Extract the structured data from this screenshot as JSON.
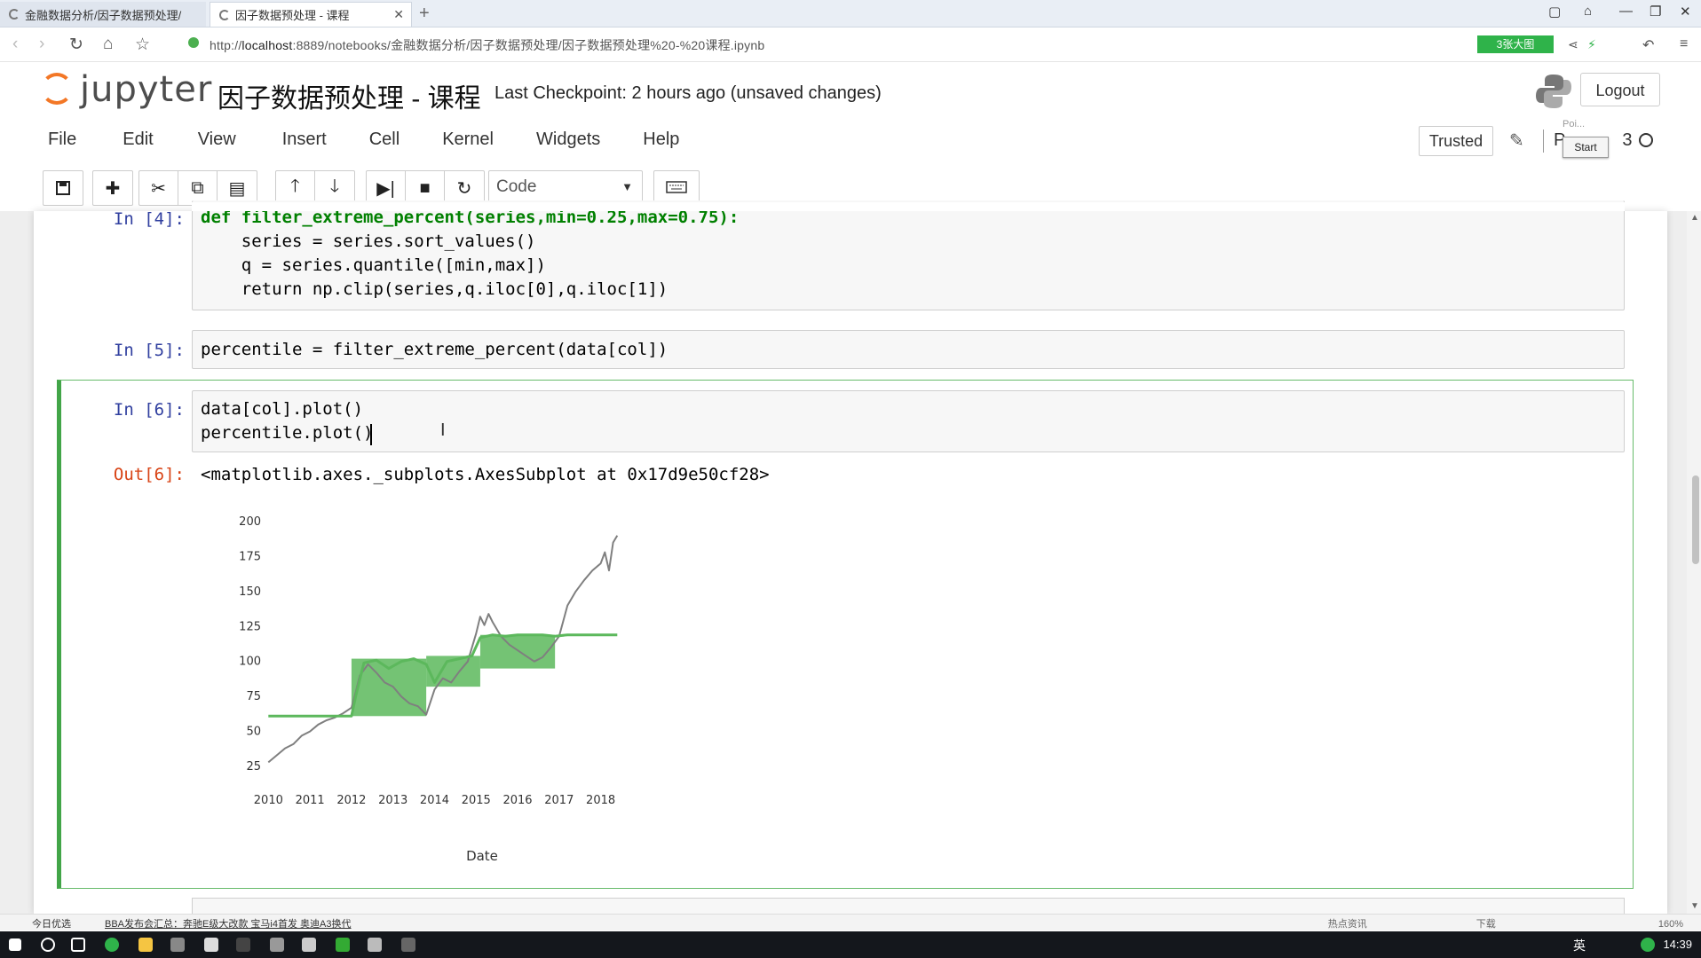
{
  "browser": {
    "tabs": [
      {
        "label": "金融数据分析/因子数据预处理/",
        "active": false
      },
      {
        "label": "因子数据预处理 - 课程",
        "active": true
      }
    ],
    "url_prefix": "http://",
    "url_host": "localhost",
    "url_rest": ":8889/notebooks/金融数据分析/因子数据预处理/因子数据预处理%20-%20课程.ipynb",
    "extension_label": "3张大图"
  },
  "jupyter": {
    "logo_text": "jupyter",
    "notebook_title": "因子数据预处理 - 课程",
    "checkpoint": "Last Checkpoint: 2 hours ago (unsaved changes)",
    "logout_label": "Logout",
    "trusted_label": "Trusted",
    "kernel_label": "P",
    "kernel_suffix": "3",
    "tooltip_start": "Start",
    "tooltip_pos": "Poi..."
  },
  "menu": [
    "File",
    "Edit",
    "View",
    "Insert",
    "Cell",
    "Kernel",
    "Widgets",
    "Help"
  ],
  "toolbar": {
    "cell_type": "Code"
  },
  "cells": [
    {
      "prompt": "In  [4]:",
      "lines": [
        "def filter_extreme_percent(series,min=0.25,max=0.75):",
        "    series = series.sort_values()",
        "    q = series.quantile([min,max])",
        "    return np.clip(series,q.iloc[0],q.iloc[1])"
      ]
    },
    {
      "prompt": "In  [5]:",
      "lines": [
        "percentile = filter_extreme_percent(data[col])"
      ]
    },
    {
      "prompt": "In  [6]:",
      "lines": [
        "data[col].plot()",
        "percentile.plot()"
      ],
      "out_prompt": "Out[6]:",
      "out_text": "<matplotlib.axes._subplots.AxesSubplot at 0x17d9e50cf28>"
    }
  ],
  "chart_data": {
    "type": "line",
    "xlabel": "Date",
    "ylabel": "",
    "x_ticks": [
      "2010",
      "2011",
      "2012",
      "2013",
      "2014",
      "2015",
      "2016",
      "2017",
      "2018"
    ],
    "y_ticks": [
      25,
      50,
      75,
      100,
      125,
      150,
      175,
      200
    ],
    "xlim": [
      2009.95,
      2018.5
    ],
    "ylim": [
      20,
      205
    ],
    "series": [
      {
        "color": "#7f7f7f",
        "x": [
          2010.0,
          2010.2,
          2010.4,
          2010.6,
          2010.8,
          2011.0,
          2011.2,
          2011.4,
          2011.6,
          2011.8,
          2012.0,
          2012.1,
          2012.2,
          2012.4,
          2012.6,
          2012.8,
          2013.0,
          2013.2,
          2013.4,
          2013.6,
          2013.8,
          2014.0,
          2014.2,
          2014.4,
          2014.6,
          2014.8,
          2015.0,
          2015.1,
          2015.2,
          2015.3,
          2015.4,
          2015.6,
          2015.8,
          2016.0,
          2016.2,
          2016.4,
          2016.6,
          2016.8,
          2017.0,
          2017.2,
          2017.4,
          2017.6,
          2017.8,
          2018.0,
          2018.1,
          2018.2,
          2018.3,
          2018.4
        ],
        "y": [
          28,
          33,
          38,
          41,
          47,
          50,
          55,
          58,
          60,
          63,
          67,
          78,
          90,
          98,
          92,
          85,
          82,
          75,
          70,
          68,
          62,
          80,
          88,
          85,
          93,
          100,
          120,
          132,
          126,
          134,
          128,
          118,
          112,
          108,
          104,
          100,
          103,
          110,
          118,
          140,
          150,
          158,
          165,
          170,
          178,
          165,
          185,
          190
        ]
      },
      {
        "color": "#5cb85c",
        "x": [
          2010.0,
          2012.0,
          2012.1,
          2012.3,
          2012.6,
          2012.9,
          2013.2,
          2013.5,
          2013.8,
          2014.0,
          2014.3,
          2014.6,
          2014.9,
          2015.1,
          2015.4,
          2015.7,
          2016.0,
          2016.3,
          2016.6,
          2016.9,
          2017.2,
          2017.6,
          2018.0,
          2018.4
        ],
        "y": [
          61,
          61,
          75,
          99,
          101,
          95,
          100,
          102,
          98,
          85,
          100,
          102,
          104,
          117,
          119,
          118,
          119,
          119,
          119,
          118,
          119,
          119,
          119,
          119
        ]
      }
    ],
    "grid": false,
    "legend": "none"
  },
  "statusbar": {
    "left": "今日优选",
    "news": "BBA发布会汇总：奔驰E级大改款 宝马i4首发 奥迪A3换代",
    "right_items": [
      "热点资讯",
      "下载",
      "160%"
    ]
  },
  "taskbar": {
    "time": "14:39",
    "ime": "英"
  }
}
